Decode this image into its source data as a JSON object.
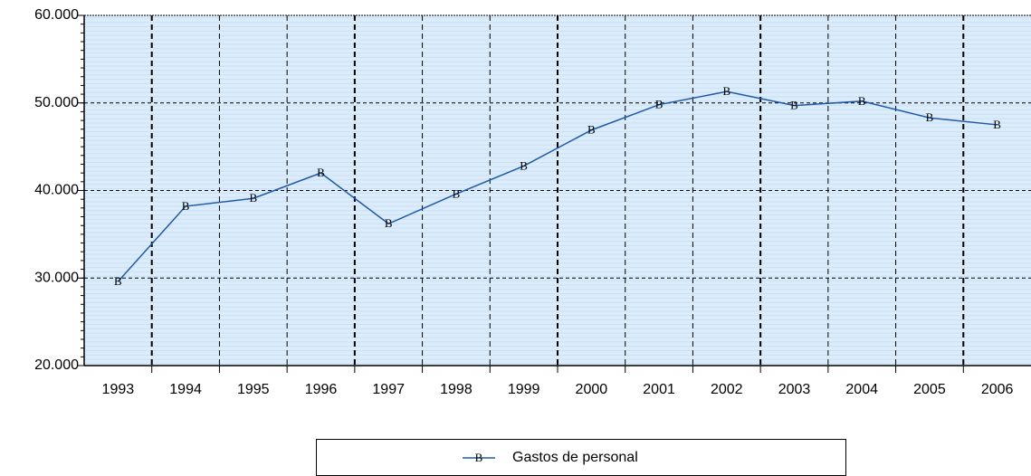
{
  "chart_data": {
    "type": "line",
    "categories": [
      "1993",
      "1994",
      "1995",
      "1996",
      "1997",
      "1998",
      "1999",
      "2000",
      "2001",
      "2002",
      "2003",
      "2004",
      "2005",
      "2006"
    ],
    "series": [
      {
        "name": "Gastos de personal",
        "color": "#1f5aa6",
        "values": [
          29600,
          38200,
          39100,
          42000,
          36200,
          39600,
          42800,
          46900,
          49800,
          51300,
          49700,
          50200,
          48300,
          47500
        ]
      }
    ],
    "marker": "B",
    "ylim": [
      20000,
      60000
    ],
    "yticks": [
      {
        "value": 20000,
        "label": "20.000"
      },
      {
        "value": 30000,
        "label": "30.000"
      },
      {
        "value": 40000,
        "label": "40.000"
      },
      {
        "value": 50000,
        "label": "50.000"
      },
      {
        "value": 60000,
        "label": "60.000"
      }
    ],
    "grid": true,
    "legend": "bottom"
  }
}
